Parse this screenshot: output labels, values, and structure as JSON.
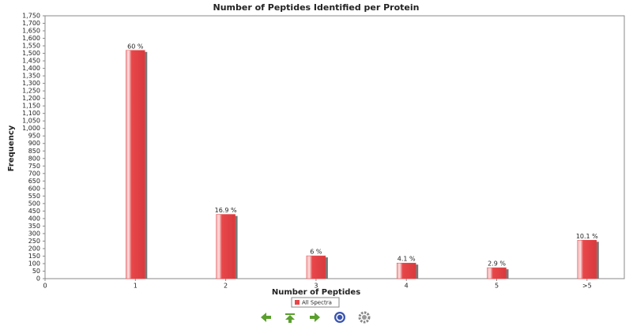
{
  "chart_data": {
    "type": "bar",
    "title": "Number of Peptides Identified per Protein",
    "x_label": "Number of Peptides",
    "y_label": "Frequency",
    "categories": [
      "0",
      "1",
      "2",
      "3",
      "4",
      "5",
      ">5"
    ],
    "series": [
      {
        "name": "All Spectra",
        "color": "#e8474a",
        "values": [
          null,
          1520,
          428,
          152,
          104,
          73,
          256
        ],
        "value_labels": [
          null,
          "60 %",
          "16.9 %",
          "6 %",
          "4.1 %",
          "2.9 %",
          "10.1 %"
        ]
      }
    ],
    "ylim": [
      0,
      1750
    ],
    "yticks": [
      0,
      50,
      100,
      150,
      200,
      250,
      300,
      350,
      400,
      450,
      500,
      550,
      600,
      650,
      700,
      750,
      800,
      850,
      900,
      950,
      {
        "value": 1000,
        "label": "1,000"
      },
      {
        "value": 1050,
        "label": "1,050"
      },
      {
        "value": 1100,
        "label": "1,100"
      },
      {
        "value": 1150,
        "label": "1,150"
      },
      {
        "value": 1200,
        "label": "1,200"
      },
      {
        "value": 1250,
        "label": "1,250"
      },
      {
        "value": 1300,
        "label": "1,300"
      },
      {
        "value": 1350,
        "label": "1,350"
      },
      {
        "value": 1400,
        "label": "1,400"
      },
      {
        "value": 1450,
        "label": "1,450"
      },
      {
        "value": 1500,
        "label": "1,500"
      },
      {
        "value": 1550,
        "label": "1,550"
      },
      {
        "value": 1600,
        "label": "1,600"
      },
      {
        "value": 1650,
        "label": "1,650"
      },
      {
        "value": 1700,
        "label": "1,700"
      },
      {
        "value": 1750,
        "label": "1,750"
      }
    ],
    "grid": false,
    "legend": "bottom"
  }
}
